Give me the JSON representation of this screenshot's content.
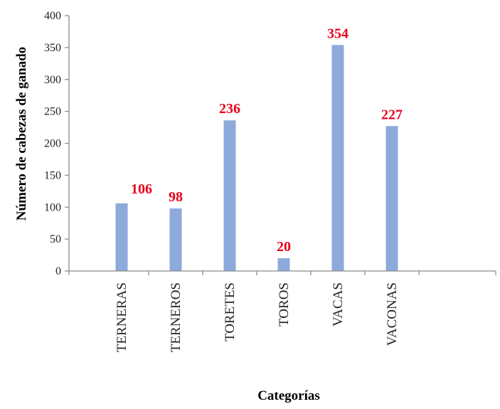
{
  "chart_data": {
    "type": "bar",
    "categories": [
      "TERNERAS",
      "TERNEROS",
      "TORETES",
      "TOROS",
      "VACAS",
      "VACONAS"
    ],
    "values": [
      106,
      98,
      236,
      20,
      354,
      227
    ],
    "data_labels": [
      "106",
      "98",
      "236",
      "20",
      "354",
      "227"
    ],
    "xlabel": "Categorías",
    "ylabel": "Número de cabezas de ganado",
    "ylim": [
      0,
      400
    ],
    "yticks": [
      0,
      50,
      100,
      150,
      200,
      250,
      300,
      350,
      400
    ],
    "grid": false,
    "legend": "none",
    "colors": {
      "bar": "#8eaadb",
      "label": "#e8001c",
      "axis": "#8c8c8c"
    }
  }
}
